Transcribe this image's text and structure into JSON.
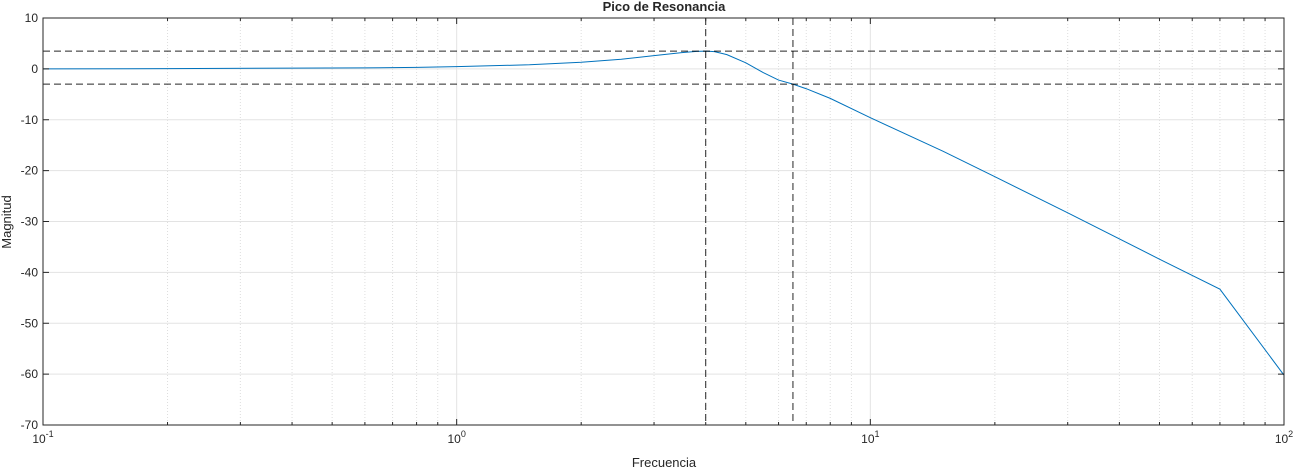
{
  "chart_data": {
    "type": "line",
    "title": "Pico de Resonancia",
    "xlabel": "Frecuencia",
    "ylabel": "Magnitud",
    "xscale": "log",
    "xlim": [
      0.1,
      100
    ],
    "ylim": [
      -70,
      10
    ],
    "grid": true,
    "x_tick_labels": [
      {
        "base": "10",
        "exp": "-1"
      },
      {
        "base": "10",
        "exp": "0"
      },
      {
        "base": "10",
        "exp": "1"
      },
      {
        "base": "10",
        "exp": "2"
      }
    ],
    "y_ticks": [
      10,
      0,
      -10,
      -20,
      -30,
      -40,
      -50,
      -60,
      -70
    ],
    "series": [
      {
        "color": "#0072bd",
        "x": [
          0.1,
          0.2,
          0.4,
          0.6,
          0.8,
          1.0,
          1.5,
          2.0,
          2.5,
          3.0,
          3.5,
          3.8,
          4.0,
          4.2,
          4.5,
          5.0,
          5.5,
          6.0,
          6.5,
          7.0,
          8.0,
          10.0,
          15.0,
          20.0,
          30.0,
          50.0,
          70.0,
          100.0
        ],
        "y": [
          0.0,
          0.05,
          0.15,
          0.2,
          0.3,
          0.45,
          0.8,
          1.3,
          1.9,
          2.6,
          3.2,
          3.45,
          3.5,
          3.4,
          2.8,
          1.2,
          -0.7,
          -2.2,
          -3.0,
          -3.9,
          -5.8,
          -9.6,
          -16.2,
          -21.2,
          -28.3,
          -37.4,
          -43.3,
          -60.2
        ]
      }
    ],
    "reference_lines": {
      "horizontal": [
        3.5,
        -3.0
      ],
      "vertical": [
        4.0,
        6.5
      ],
      "color": "#000000",
      "style": "dashed"
    }
  }
}
